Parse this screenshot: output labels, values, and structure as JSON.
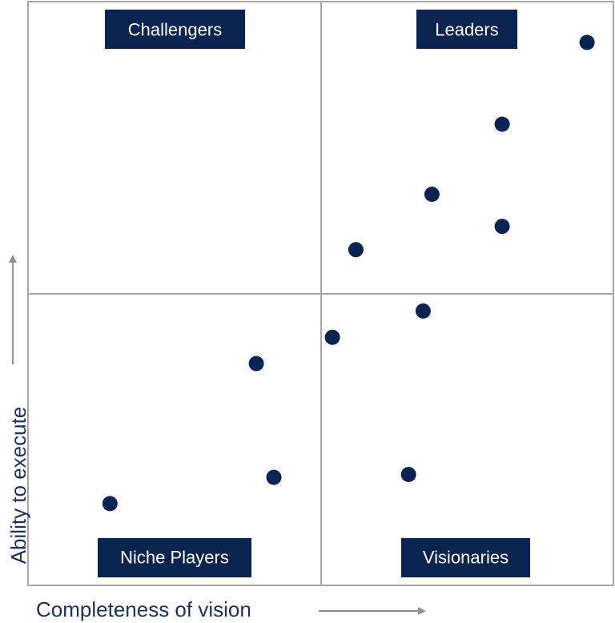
{
  "chart_data": {
    "type": "scatter",
    "title": "",
    "xlabel": "Completeness of vision",
    "ylabel": "Ability to execute",
    "xlim": [
      0,
      1
    ],
    "ylim": [
      0,
      1
    ],
    "quadrants": {
      "top_left": "Challengers",
      "top_right": "Leaders",
      "bottom_left": "Niche Players",
      "bottom_right": "Visionaries"
    },
    "points": [
      {
        "x": 0.955,
        "y": 0.93
      },
      {
        "x": 0.81,
        "y": 0.79
      },
      {
        "x": 0.69,
        "y": 0.67
      },
      {
        "x": 0.81,
        "y": 0.615
      },
      {
        "x": 0.56,
        "y": 0.575
      },
      {
        "x": 0.675,
        "y": 0.47
      },
      {
        "x": 0.52,
        "y": 0.425
      },
      {
        "x": 0.39,
        "y": 0.38
      },
      {
        "x": 0.42,
        "y": 0.185
      },
      {
        "x": 0.14,
        "y": 0.14
      },
      {
        "x": 0.65,
        "y": 0.19
      }
    ],
    "colors": {
      "point": "#0b2350",
      "label_bg": "#0b2350",
      "label_text": "#ffffff",
      "frame": "#a6a6a6",
      "axis_text": "#1e2f5c",
      "arrow": "#8f8f8f"
    }
  }
}
